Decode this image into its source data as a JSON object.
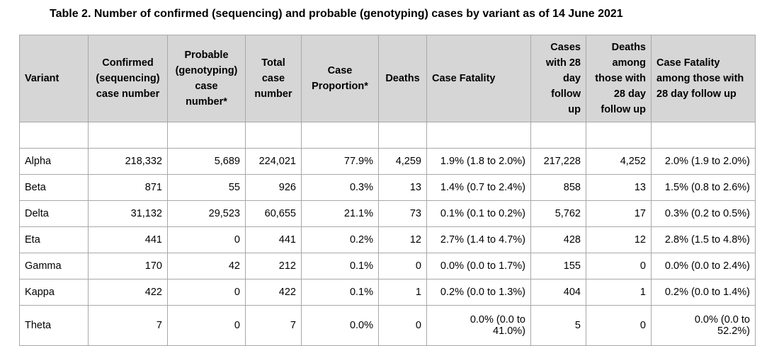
{
  "title": "Table 2. Number of confirmed (sequencing) and probable (genotyping) cases by variant as of 14 June 2021",
  "columns": [
    "Variant",
    "Confirmed\n(sequencing)\ncase number",
    "Probable\n(genotyping)\ncase\nnumber*",
    "Total\ncase\nnumber",
    "Case\nProportion*",
    "Deaths",
    "Case Fatality",
    "Cases\nwith 28\nday\nfollow\nup",
    "Deaths\namong\nthose with\n28 day\nfollow up",
    "Case Fatality\namong those with\n28 day follow up"
  ],
  "rows": [
    [
      "Alpha",
      "218,332",
      "5,689",
      "224,021",
      "77.9%",
      "4,259",
      "1.9% (1.8 to 2.0%)",
      "217,228",
      "4,252",
      "2.0% (1.9 to 2.0%)"
    ],
    [
      "Beta",
      "871",
      "55",
      "926",
      "0.3%",
      "13",
      "1.4% (0.7 to 2.4%)",
      "858",
      "13",
      "1.5% (0.8 to 2.6%)"
    ],
    [
      "Delta",
      "31,132",
      "29,523",
      "60,655",
      "21.1%",
      "73",
      "0.1% (0.1 to 0.2%)",
      "5,762",
      "17",
      "0.3% (0.2 to 0.5%)"
    ],
    [
      "Eta",
      "441",
      "0",
      "441",
      "0.2%",
      "12",
      "2.7% (1.4 to 4.7%)",
      "428",
      "12",
      "2.8% (1.5 to 4.8%)"
    ],
    [
      "Gamma",
      "170",
      "42",
      "212",
      "0.1%",
      "0",
      "0.0% (0.0 to 1.7%)",
      "155",
      "0",
      "0.0% (0.0 to 2.4%)"
    ],
    [
      "Kappa",
      "422",
      "0",
      "422",
      "0.1%",
      "1",
      "0.2% (0.0 to 1.3%)",
      "404",
      "1",
      "0.2% (0.0 to 1.4%)"
    ],
    [
      "Theta",
      "7",
      "0",
      "7",
      "0.0%",
      "0",
      "0.0% (0.0 to\n41.0%)",
      "5",
      "0",
      "0.0% (0.0 to\n52.2%)"
    ]
  ]
}
